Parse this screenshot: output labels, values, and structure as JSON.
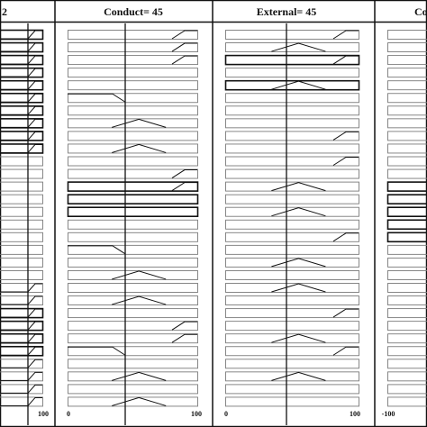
{
  "panels": [
    {
      "title": "2",
      "axis_labels": [
        "100"
      ],
      "rules": [
        "ramp",
        "ramp",
        "ramp",
        "ramp",
        "ramp",
        "ramp",
        "ramp",
        "ramp",
        "ramp",
        "ramp",
        "empty",
        "empty",
        "empty",
        "empty",
        "empty",
        "empty",
        "empty",
        "empty",
        "empty",
        "empty",
        "ramp",
        "ramp",
        "ramp",
        "ramp",
        "ramp",
        "ramp",
        "ramp",
        "ramp",
        "ramp",
        "ramp"
      ],
      "thick_rows": [
        0,
        1,
        2,
        3,
        4,
        5,
        6,
        7,
        8,
        9,
        22,
        23,
        24,
        25
      ]
    },
    {
      "title": "Conduct= 45",
      "axis_labels": [
        "0",
        "100"
      ],
      "rules": [
        "ramp_up_high",
        "ramp_up_high",
        "ramp_up_high",
        "empty",
        "empty",
        "ramp_down_left",
        "empty",
        "triangle",
        "empty",
        "triangle",
        "empty",
        "ramp_up_high",
        "ramp_up_high",
        "empty",
        "empty",
        "empty",
        "empty",
        "ramp_down_left",
        "empty",
        "triangle",
        "empty",
        "triangle",
        "empty",
        "ramp_up_high",
        "ramp_up_high",
        "ramp_down_left",
        "empty",
        "triangle",
        "empty",
        "triangle"
      ],
      "thick_rows": [
        12,
        13,
        14
      ]
    },
    {
      "title": "External= 45",
      "axis_labels": [
        "0",
        "100"
      ],
      "rules": [
        "ramp_up_high",
        "triangle",
        "ramp_up_high",
        "empty",
        "triangle",
        "empty",
        "empty",
        "empty",
        "ramp_up_high",
        "empty",
        "ramp_up_high",
        "empty",
        "triangle",
        "empty",
        "triangle",
        "empty",
        "ramp_up_high",
        "empty",
        "triangle",
        "empty",
        "triangle",
        "empty",
        "ramp_up_high",
        "empty",
        "triangle",
        "ramp_up_high",
        "empty",
        "triangle",
        "empty",
        "empty"
      ],
      "thick_rows": [
        2,
        4
      ]
    },
    {
      "title": "Co",
      "axis_labels": [
        "-100"
      ],
      "rules": [
        "empty",
        "empty",
        "empty",
        "empty",
        "empty",
        "empty",
        "empty",
        "empty",
        "empty",
        "empty",
        "empty",
        "empty",
        "empty",
        "empty",
        "empty",
        "empty",
        "empty",
        "empty",
        "empty",
        "empty",
        "empty",
        "empty",
        "empty",
        "empty",
        "empty",
        "empty",
        "empty",
        "empty",
        "empty",
        "empty"
      ],
      "thick_rows": [
        12,
        13,
        14,
        15,
        16
      ]
    }
  ],
  "colors": {
    "ink": "#111111",
    "box": "#7a7a7a",
    "background": "#ffffff"
  }
}
